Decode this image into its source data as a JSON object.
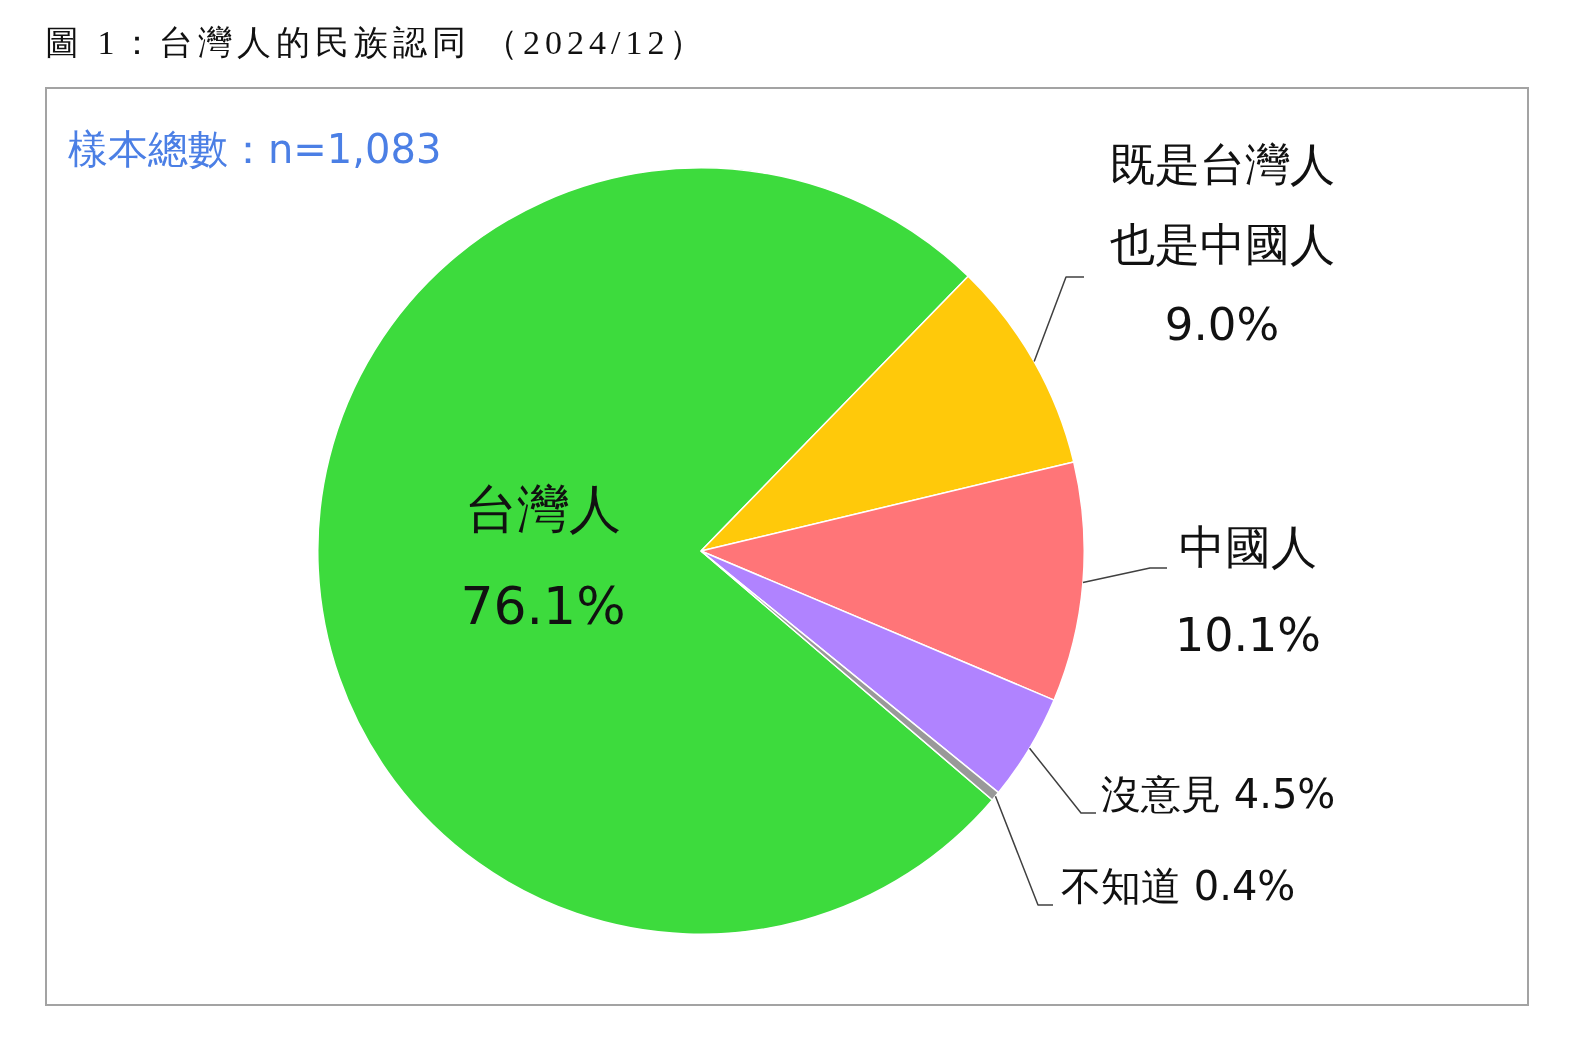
{
  "chart_data": {
    "type": "pie",
    "title": "圖 1：台灣人的民族認同 （2024/12）",
    "annotations": [
      "樣本總數：n=1,083"
    ],
    "categories": [
      "台灣人",
      "既是台灣人也是中國人",
      "中國人",
      "沒意見",
      "不知道"
    ],
    "values": [
      76.1,
      9.0,
      10.1,
      4.5,
      0.4
    ],
    "colors": [
      "#3ddb3d",
      "#ffc90a",
      "#ff7578",
      "#b083ff",
      "#999999"
    ],
    "value_labels": [
      "76.1%",
      "9.0%",
      "10.1%",
      "4.5%",
      "0.4%"
    ],
    "legend": false
  }
}
